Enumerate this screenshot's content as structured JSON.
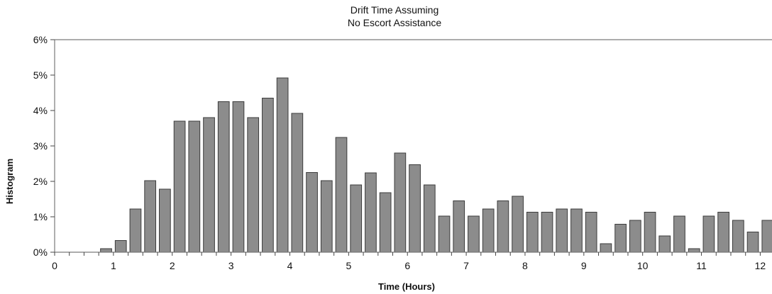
{
  "chart_data": {
    "type": "bar",
    "title_lines": [
      "Drift Time Assuming",
      "No Escort Assistance"
    ],
    "xlabel": "Time (Hours)",
    "ylabel": "Histogram",
    "xlim": [
      0,
      12.2
    ],
    "ylim": [
      0,
      6
    ],
    "x_ticks": [
      0,
      1,
      2,
      3,
      4,
      5,
      6,
      7,
      8,
      9,
      10,
      11,
      12
    ],
    "y_ticks": [
      "0%",
      "1%",
      "2%",
      "3%",
      "4%",
      "5%",
      "6%"
    ],
    "bin_width": 0.25,
    "x": [
      0.125,
      0.375,
      0.625,
      0.875,
      1.125,
      1.375,
      1.625,
      1.875,
      2.125,
      2.375,
      2.625,
      2.875,
      3.125,
      3.375,
      3.625,
      3.875,
      4.125,
      4.375,
      4.625,
      4.875,
      5.125,
      5.375,
      5.625,
      5.875,
      6.125,
      6.375,
      6.625,
      6.875,
      7.125,
      7.375,
      7.625,
      7.875,
      8.125,
      8.375,
      8.625,
      8.875,
      9.125,
      9.375,
      9.625,
      9.875,
      10.125,
      10.375,
      10.625,
      10.875,
      11.125,
      11.375,
      11.625,
      11.875,
      12.125
    ],
    "values": [
      0,
      0,
      0,
      0.1,
      0.33,
      1.22,
      2.02,
      1.78,
      3.7,
      3.7,
      3.8,
      4.25,
      4.25,
      3.8,
      4.35,
      4.92,
      3.92,
      2.25,
      2.02,
      3.24,
      1.9,
      2.24,
      1.68,
      2.8,
      2.47,
      1.9,
      1.02,
      1.45,
      1.02,
      1.22,
      1.45,
      1.58,
      1.13,
      1.13,
      1.22,
      1.22,
      1.13,
      0.24,
      0.79,
      0.9,
      1.13,
      0.46,
      1.02,
      0.1,
      1.02,
      1.13,
      0.9,
      0.57,
      0.9
    ],
    "grid": false,
    "bar_color": "#8c8c8c",
    "frame_color": "#7a7a7a"
  }
}
